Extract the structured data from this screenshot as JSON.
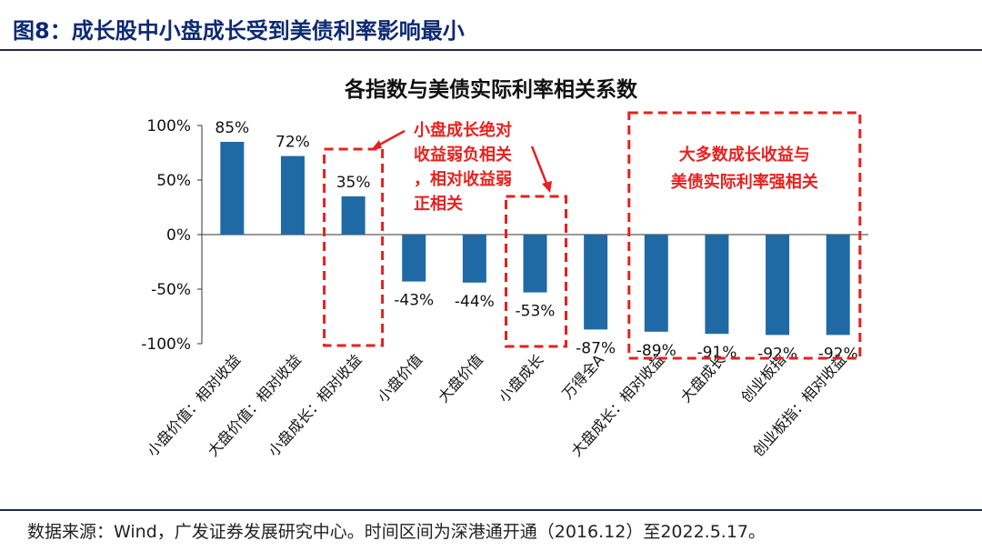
{
  "figure": {
    "title": "图8：成长股中小盘成长受到美债利率影响最小",
    "source": "数据来源：Wind，广发证券发展研究中心。时间区间为深港通开通（2016.12）至2022.5.17。"
  },
  "chart_data": {
    "type": "bar",
    "title": "各指数与美债实际利率相关系数",
    "categories": [
      "小盘价值：相对收益",
      "大盘价值：相对收益",
      "小盘成长：相对收益",
      "小盘价值",
      "大盘价值",
      "小盘成长",
      "万得全A",
      "大盘成长：相对收益",
      "大盘成长",
      "创业板指",
      "创业板指：相对收益"
    ],
    "values": [
      85,
      72,
      35,
      -43,
      -44,
      -53,
      -87,
      -89,
      -91,
      -92,
      -92
    ],
    "data_labels": [
      "85%",
      "72%",
      "35%",
      "-43%",
      "-44%",
      "-53%",
      "-87%",
      "-89%",
      "-91%",
      "-92%",
      "-92%"
    ],
    "ylim": [
      -100,
      100
    ],
    "yticks": [
      100,
      50,
      0,
      -50,
      -100
    ],
    "ytick_labels": [
      "100%",
      "50%",
      "0%",
      "-50%",
      "-100%"
    ],
    "xlabel": "",
    "ylabel": "",
    "bar_color": "#1f6aa5",
    "annotation_color": "#e8201e",
    "annotations": [
      {
        "id": "small-cap-growth",
        "text_lines": [
          "小盘成长绝对",
          "收益弱负相关",
          "，相对收益弱",
          "正相关"
        ]
      },
      {
        "id": "large-group",
        "text_lines": [
          "大多数成长收益与",
          "美债实际利率强相关"
        ]
      }
    ]
  }
}
